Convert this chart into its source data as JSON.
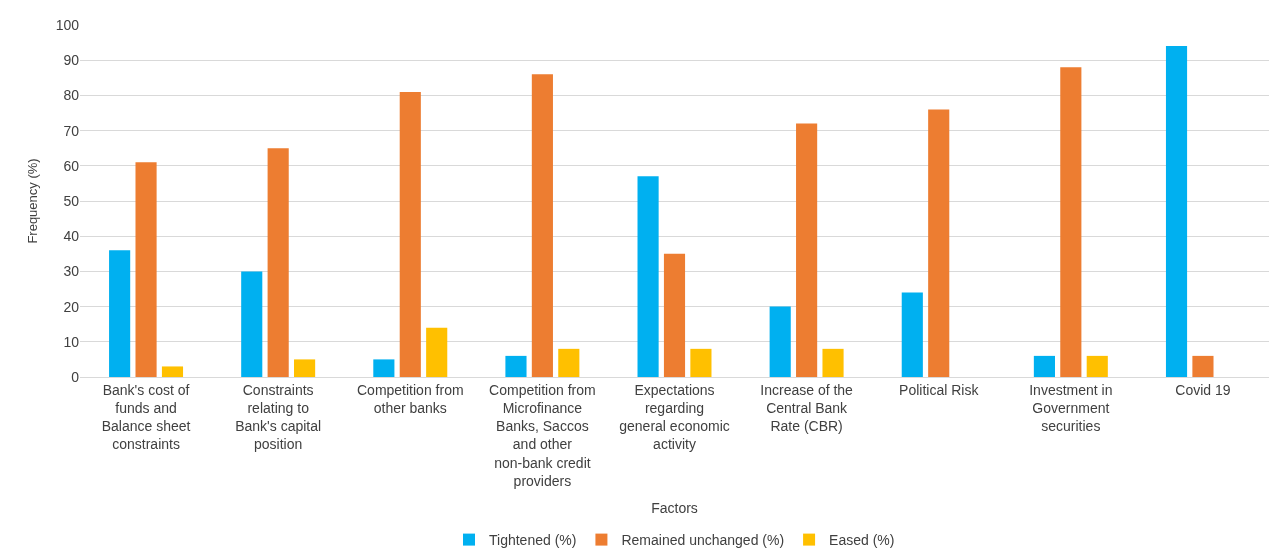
{
  "chart_data": {
    "type": "bar",
    "xlabel": "Factors",
    "ylabel": "Frequency (%)",
    "categories": [
      "Bank's cost of funds and Balance sheet constraints",
      "Constraints relating to Bank's capital position",
      "Competition from other banks",
      "Competition from Microfinance Banks, Saccos and other non-bank credit providers",
      "Expectations regarding general economic activity",
      "Increase of the Central Bank Rate (CBR)",
      "Political Risk",
      "Investment in Government securities",
      "Covid 19"
    ],
    "series": [
      {
        "name": "Tightened (%)",
        "color": "#00b0f0",
        "values": [
          36,
          30,
          5,
          6,
          57,
          20,
          24,
          6,
          94
        ]
      },
      {
        "name": "Remained unchanged (%)",
        "color": "#ed7d31",
        "values": [
          61,
          65,
          81,
          86,
          35,
          72,
          76,
          88,
          6
        ]
      },
      {
        "name": "Eased (%)",
        "color": "#ffc000",
        "values": [
          3,
          5,
          14,
          8,
          8,
          8,
          0,
          6,
          0
        ]
      }
    ],
    "ylim": [
      0,
      100
    ],
    "yticks": [
      0,
      10,
      20,
      30,
      40,
      50,
      60,
      70,
      80,
      90,
      100
    ],
    "grid": "y",
    "legend": "bottom"
  }
}
